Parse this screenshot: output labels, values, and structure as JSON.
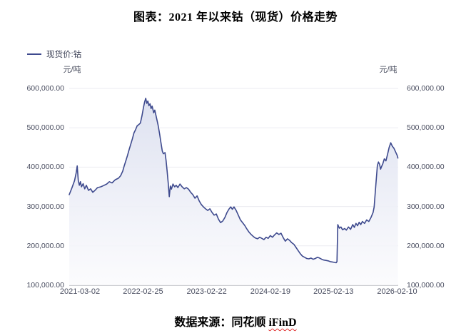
{
  "title": "图表：2021 年以来钴（现货）价格走势",
  "legend": {
    "label": "现货价:钴"
  },
  "axes": {
    "unit_left": "元/吨",
    "unit_right": "元/吨"
  },
  "source": {
    "prefix": "数据来源：同花顺 ",
    "brand": "iFinD"
  },
  "colors": {
    "line": "#3e4a8e",
    "fill_top": "#dde1f0",
    "fill_bottom": "#fbfbfd",
    "grid": "#ebebf1",
    "axis": "#9b9ca6",
    "tick_text": "#474b5e"
  },
  "chart_data": {
    "type": "line",
    "title": "2021 年以来钴（现货）价格走势",
    "series_name": "现货价:钴",
    "ylabel": "元/吨",
    "ylim": [
      100000,
      600000
    ],
    "yticks": [
      600000,
      500000,
      400000,
      300000,
      200000,
      100000
    ],
    "grid": "horizontal",
    "legend_position": "top-left",
    "x_unit": "months_since_2021-01",
    "x_range": [
      0,
      61.5
    ],
    "xticks": [
      {
        "label": "2021-03-02",
        "t": 2.0
      },
      {
        "label": "2022-02-25",
        "t": 13.8
      },
      {
        "label": "2023-02-22",
        "t": 25.7
      },
      {
        "label": "2024-02-19",
        "t": 37.6
      },
      {
        "label": "2025-02-13",
        "t": 49.4
      },
      {
        "label": "2026-02-10",
        "t": 61.3
      }
    ],
    "points": [
      [
        0,
        330000
      ],
      [
        0.5,
        347000
      ],
      [
        1.0,
        366000
      ],
      [
        1.3,
        385000
      ],
      [
        1.5,
        403000
      ],
      [
        1.7,
        366000
      ],
      [
        1.9,
        354000
      ],
      [
        2.1,
        363000
      ],
      [
        2.3,
        350000
      ],
      [
        2.6,
        358000
      ],
      [
        2.9,
        345000
      ],
      [
        3.2,
        354000
      ],
      [
        3.6,
        341000
      ],
      [
        4.0,
        345000
      ],
      [
        4.4,
        336000
      ],
      [
        4.8,
        341000
      ],
      [
        5.3,
        348000
      ],
      [
        5.9,
        350000
      ],
      [
        6.4,
        353000
      ],
      [
        7.0,
        357000
      ],
      [
        7.5,
        363000
      ],
      [
        8.0,
        360000
      ],
      [
        8.6,
        368000
      ],
      [
        9.2,
        372000
      ],
      [
        9.6,
        378000
      ],
      [
        10.0,
        390000
      ],
      [
        10.3,
        404000
      ],
      [
        10.6,
        417000
      ],
      [
        10.9,
        430000
      ],
      [
        11.2,
        445000
      ],
      [
        11.5,
        458000
      ],
      [
        11.8,
        472000
      ],
      [
        12.1,
        487000
      ],
      [
        12.4,
        495000
      ],
      [
        12.7,
        505000
      ],
      [
        13.0,
        508000
      ],
      [
        13.3,
        512000
      ],
      [
        13.6,
        530000
      ],
      [
        13.9,
        553000
      ],
      [
        14.1,
        566000
      ],
      [
        14.3,
        575000
      ],
      [
        14.5,
        562000
      ],
      [
        14.7,
        568000
      ],
      [
        14.9,
        556000
      ],
      [
        15.1,
        561000
      ],
      [
        15.3,
        549000
      ],
      [
        15.5,
        555000
      ],
      [
        15.8,
        538000
      ],
      [
        16.0,
        545000
      ],
      [
        16.3,
        526000
      ],
      [
        16.6,
        508000
      ],
      [
        16.9,
        484000
      ],
      [
        17.1,
        466000
      ],
      [
        17.4,
        441000
      ],
      [
        17.6,
        434000
      ],
      [
        17.9,
        437000
      ],
      [
        18.1,
        417000
      ],
      [
        18.3,
        390000
      ],
      [
        18.5,
        360000
      ],
      [
        18.7,
        325000
      ],
      [
        18.9,
        352000
      ],
      [
        19.1,
        344000
      ],
      [
        19.4,
        357000
      ],
      [
        19.7,
        350000
      ],
      [
        20.0,
        354000
      ],
      [
        20.3,
        348000
      ],
      [
        20.7,
        357000
      ],
      [
        21.1,
        350000
      ],
      [
        21.5,
        345000
      ],
      [
        21.9,
        348000
      ],
      [
        22.3,
        344000
      ],
      [
        22.7,
        336000
      ],
      [
        23.1,
        330000
      ],
      [
        23.5,
        321000
      ],
      [
        23.9,
        327000
      ],
      [
        24.3,
        314000
      ],
      [
        24.7,
        305000
      ],
      [
        25.1,
        299000
      ],
      [
        25.5,
        294000
      ],
      [
        25.9,
        290000
      ],
      [
        26.3,
        294000
      ],
      [
        26.7,
        285000
      ],
      [
        27.1,
        278000
      ],
      [
        27.5,
        281000
      ],
      [
        27.9,
        268000
      ],
      [
        28.3,
        259000
      ],
      [
        28.7,
        263000
      ],
      [
        29.1,
        272000
      ],
      [
        29.5,
        285000
      ],
      [
        29.9,
        294000
      ],
      [
        30.2,
        299000
      ],
      [
        30.5,
        293000
      ],
      [
        30.8,
        299000
      ],
      [
        31.2,
        290000
      ],
      [
        31.6,
        278000
      ],
      [
        32.0,
        266000
      ],
      [
        32.4,
        259000
      ],
      [
        32.8,
        252000
      ],
      [
        33.2,
        243000
      ],
      [
        33.6,
        235000
      ],
      [
        34.0,
        229000
      ],
      [
        34.4,
        224000
      ],
      [
        34.8,
        220000
      ],
      [
        35.2,
        218000
      ],
      [
        35.6,
        222000
      ],
      [
        36.0,
        219000
      ],
      [
        36.4,
        216000
      ],
      [
        36.8,
        222000
      ],
      [
        37.2,
        219000
      ],
      [
        37.6,
        226000
      ],
      [
        38.0,
        222000
      ],
      [
        38.4,
        228000
      ],
      [
        38.8,
        233000
      ],
      [
        39.2,
        229000
      ],
      [
        39.6,
        232000
      ],
      [
        40.0,
        221000
      ],
      [
        40.4,
        212000
      ],
      [
        40.8,
        218000
      ],
      [
        41.2,
        214000
      ],
      [
        41.6,
        208000
      ],
      [
        42.0,
        204000
      ],
      [
        42.4,
        196000
      ],
      [
        42.8,
        188000
      ],
      [
        43.2,
        180000
      ],
      [
        43.6,
        174000
      ],
      [
        44.0,
        171000
      ],
      [
        44.4,
        168000
      ],
      [
        44.8,
        167000
      ],
      [
        45.2,
        169000
      ],
      [
        45.6,
        166000
      ],
      [
        46.0,
        168000
      ],
      [
        46.4,
        171000
      ],
      [
        46.8,
        169000
      ],
      [
        47.2,
        166000
      ],
      [
        47.6,
        164000
      ],
      [
        48.0,
        163000
      ],
      [
        48.4,
        162000
      ],
      [
        48.8,
        160000
      ],
      [
        49.2,
        159000
      ],
      [
        49.6,
        158000
      ],
      [
        49.9,
        157000
      ],
      [
        50.05,
        160000
      ],
      [
        50.2,
        254000
      ],
      [
        50.5,
        245000
      ],
      [
        50.8,
        248000
      ],
      [
        51.1,
        241000
      ],
      [
        51.5,
        244000
      ],
      [
        51.8,
        240000
      ],
      [
        52.2,
        248000
      ],
      [
        52.6,
        242000
      ],
      [
        53.0,
        254000
      ],
      [
        53.3,
        247000
      ],
      [
        53.6,
        257000
      ],
      [
        53.9,
        251000
      ],
      [
        54.2,
        260000
      ],
      [
        54.5,
        254000
      ],
      [
        54.8,
        262000
      ],
      [
        55.2,
        257000
      ],
      [
        55.6,
        266000
      ],
      [
        56.0,
        262000
      ],
      [
        56.4,
        272000
      ],
      [
        56.8,
        285000
      ],
      [
        57.0,
        299000
      ],
      [
        57.2,
        335000
      ],
      [
        57.4,
        370000
      ],
      [
        57.6,
        404000
      ],
      [
        57.8,
        413000
      ],
      [
        58.0,
        408000
      ],
      [
        58.2,
        395000
      ],
      [
        58.4,
        402000
      ],
      [
        58.6,
        408000
      ],
      [
        58.9,
        421000
      ],
      [
        59.2,
        416000
      ],
      [
        59.5,
        432000
      ],
      [
        59.8,
        450000
      ],
      [
        60.1,
        462000
      ],
      [
        60.4,
        453000
      ],
      [
        60.7,
        448000
      ],
      [
        61.0,
        439000
      ],
      [
        61.3,
        430000
      ],
      [
        61.45,
        423000
      ]
    ]
  }
}
